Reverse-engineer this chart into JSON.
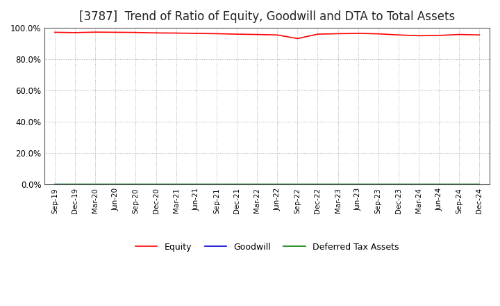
{
  "title": "[3787]  Trend of Ratio of Equity, Goodwill and DTA to Total Assets",
  "x_labels": [
    "Sep-19",
    "Dec-19",
    "Mar-20",
    "Jun-20",
    "Sep-20",
    "Dec-20",
    "Mar-21",
    "Jun-21",
    "Sep-21",
    "Dec-21",
    "Mar-22",
    "Jun-22",
    "Sep-22",
    "Dec-22",
    "Mar-23",
    "Jun-23",
    "Sep-23",
    "Dec-23",
    "Mar-24",
    "Jun-24",
    "Sep-24",
    "Dec-24"
  ],
  "equity": [
    97.2,
    97.0,
    97.3,
    97.2,
    97.1,
    96.8,
    96.7,
    96.5,
    96.3,
    96.0,
    95.8,
    95.5,
    93.2,
    96.0,
    96.3,
    96.5,
    96.2,
    95.5,
    95.0,
    95.2,
    95.8,
    95.5
  ],
  "goodwill": [
    0.0,
    0.0,
    0.0,
    0.0,
    0.0,
    0.0,
    0.0,
    0.0,
    0.0,
    0.0,
    0.0,
    0.0,
    0.0,
    0.0,
    0.0,
    0.0,
    0.0,
    0.0,
    0.0,
    0.0,
    0.0,
    0.0
  ],
  "dta": [
    0.2,
    0.2,
    0.2,
    0.2,
    0.2,
    0.2,
    0.2,
    0.2,
    0.2,
    0.2,
    0.2,
    0.2,
    0.2,
    0.2,
    0.2,
    0.2,
    0.2,
    0.2,
    0.2,
    0.2,
    0.2,
    0.2
  ],
  "equity_color": "#ff0000",
  "goodwill_color": "#0000cc",
  "dta_color": "#008000",
  "ylim": [
    0,
    100
  ],
  "yticks": [
    0,
    20,
    40,
    60,
    80,
    100
  ],
  "grid_color": "#aaaaaa",
  "background_color": "#ffffff",
  "plot_bg_color": "#f5f5f5",
  "title_fontsize": 12,
  "legend_labels": [
    "Equity",
    "Goodwill",
    "Deferred Tax Assets"
  ]
}
